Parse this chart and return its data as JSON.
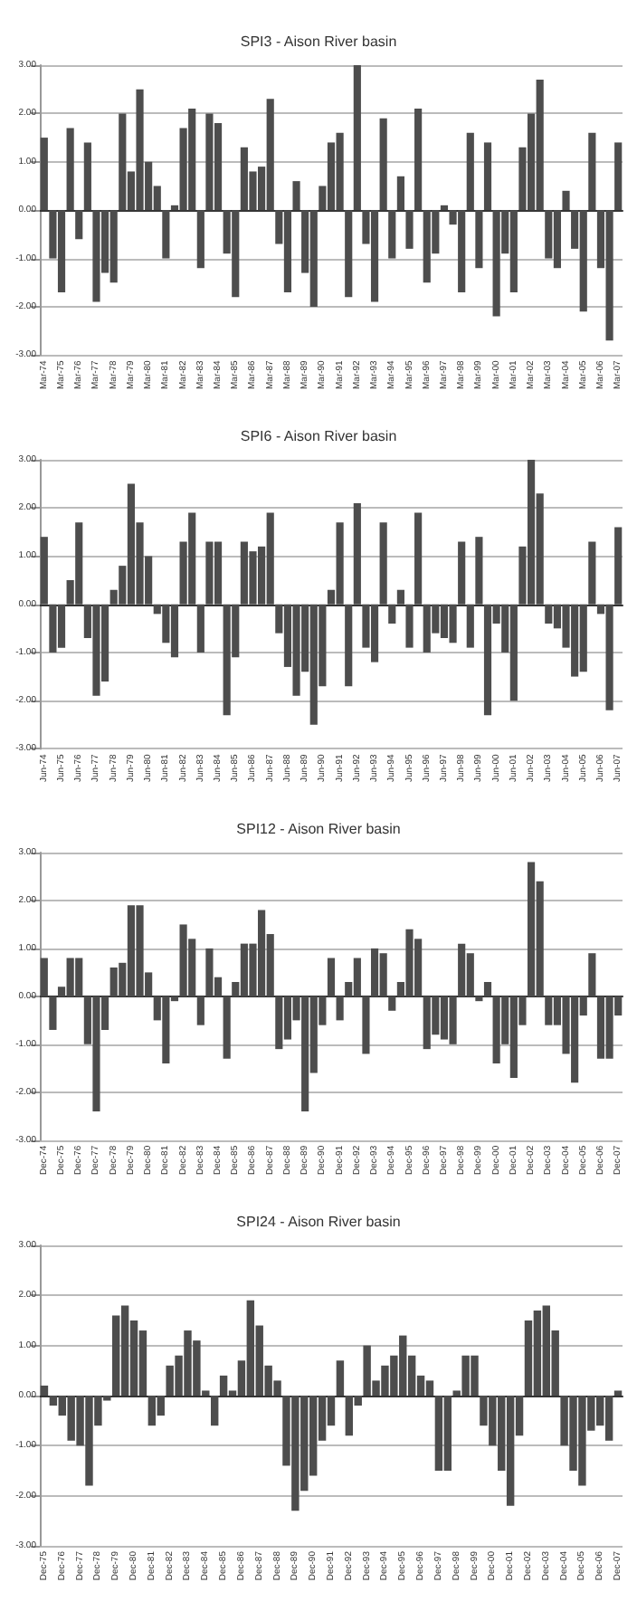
{
  "chart_data": [
    {
      "type": "bar",
      "title": "SPI3 - Aison River basin",
      "categories": [
        "Mar-74",
        null,
        "Mar-75",
        null,
        "Mar-76",
        null,
        "Mar-77",
        null,
        "Mar-78",
        null,
        "Mar-79",
        null,
        "Mar-80",
        null,
        "Mar-81",
        null,
        "Mar-82",
        null,
        "Mar-83",
        null,
        "Mar-84",
        null,
        "Mar-85",
        null,
        "Mar-86",
        null,
        "Mar-87",
        null,
        "Mar-88",
        null,
        "Mar-89",
        null,
        "Mar-90",
        null,
        "Mar-91",
        null,
        "Mar-92",
        null,
        "Mar-93",
        null,
        "Mar-94",
        null,
        "Mar-95",
        null,
        "Mar-96",
        null,
        "Mar-97",
        null,
        "Mar-98",
        null,
        "Mar-99",
        null,
        "Mar-00",
        null,
        "Mar-01",
        null,
        "Mar-02",
        null,
        "Mar-03",
        null,
        "Mar-04",
        null,
        "Mar-05",
        null,
        "Mar-06",
        null,
        "Mar-07"
      ],
      "values": [
        1.5,
        -1.0,
        -1.7,
        1.7,
        -0.6,
        1.4,
        -1.9,
        -1.3,
        -1.5,
        2.0,
        0.8,
        2.5,
        1.0,
        0.5,
        -1.0,
        0.1,
        1.7,
        2.1,
        -1.2,
        2.0,
        1.8,
        -0.9,
        -1.8,
        1.3,
        0.8,
        0.9,
        2.3,
        -0.7,
        -1.7,
        0.6,
        -1.3,
        -2.0,
        0.5,
        1.4,
        1.6,
        -1.8,
        3.0,
        -0.7,
        -1.9,
        1.9,
        -1.0,
        0.7,
        -0.8,
        2.1,
        -1.5,
        -0.9,
        0.1,
        -0.3,
        -1.7,
        1.6,
        -1.2,
        1.4,
        -2.2,
        -0.9,
        -1.7,
        1.3,
        2.0,
        2.7,
        -1.0,
        -1.2,
        0.4,
        -0.8,
        -2.1,
        1.6,
        -1.2,
        -2.7,
        1.4
      ],
      "color": "#4d4d4d",
      "ylim": [
        -3,
        3
      ],
      "yticks": [
        {
          "value": -3,
          "label": "-3.00"
        },
        {
          "value": -2,
          "label": "-2.00"
        },
        {
          "value": -1,
          "label": "-1.00"
        },
        {
          "value": 0,
          "label": "0.00"
        },
        {
          "value": 1,
          "label": "1.00"
        },
        {
          "value": 2,
          "label": "2.00"
        },
        {
          "value": 3,
          "label": "3.00"
        }
      ],
      "grid": "y"
    },
    {
      "type": "bar",
      "title": "SPI6 - Aison River basin",
      "categories": [
        "Jun-74",
        null,
        "Jun-75",
        null,
        "Jun-76",
        null,
        "Jun-77",
        null,
        "Jun-78",
        null,
        "Jun-79",
        null,
        "Jun-80",
        null,
        "Jun-81",
        null,
        "Jun-82",
        null,
        "Jun-83",
        null,
        "Jun-84",
        null,
        "Jun-85",
        null,
        "Jun-86",
        null,
        "Jun-87",
        null,
        "Jun-88",
        null,
        "Jun-89",
        null,
        "Jun-90",
        null,
        "Jun-91",
        null,
        "Jun-92",
        null,
        "Jun-93",
        null,
        "Jun-94",
        null,
        "Jun-95",
        null,
        "Jun-96",
        null,
        "Jun-97",
        null,
        "Jun-98",
        null,
        "Jun-99",
        null,
        "Jun-00",
        null,
        "Jun-01",
        null,
        "Jun-02",
        null,
        "Jun-03",
        null,
        "Jun-04",
        null,
        "Jun-05",
        null,
        "Jun-06",
        null,
        "Jun-07"
      ],
      "values": [
        1.4,
        -1.0,
        -0.9,
        0.5,
        1.7,
        -0.7,
        -1.9,
        -1.6,
        0.3,
        0.8,
        2.5,
        1.7,
        1.0,
        -0.2,
        -0.8,
        -1.1,
        1.3,
        1.9,
        -1.0,
        1.3,
        1.3,
        -2.3,
        -1.1,
        1.3,
        1.1,
        1.2,
        1.9,
        -0.6,
        -1.3,
        -1.9,
        -1.4,
        -2.5,
        -1.7,
        0.3,
        1.7,
        -1.7,
        2.1,
        -0.9,
        -1.2,
        1.7,
        -0.4,
        0.3,
        -0.9,
        1.9,
        -1.0,
        -0.6,
        -0.7,
        -0.8,
        1.3,
        -0.9,
        1.4,
        -2.3,
        -0.4,
        -1.0,
        -2.0,
        1.2,
        3.0,
        2.3,
        -0.4,
        -0.5,
        -0.9,
        -1.5,
        -1.4,
        1.3,
        -0.2,
        -2.2,
        1.6
      ],
      "color": "#4d4d4d",
      "ylim": [
        -3,
        3
      ],
      "yticks": [
        {
          "value": -3,
          "label": "-3.00"
        },
        {
          "value": -2,
          "label": "-2.00"
        },
        {
          "value": -1,
          "label": "-1.00"
        },
        {
          "value": 0,
          "label": "0.00"
        },
        {
          "value": 1,
          "label": "1.00"
        },
        {
          "value": 2,
          "label": "2.00"
        },
        {
          "value": 3,
          "label": "3.00"
        }
      ],
      "grid": "y"
    },
    {
      "type": "bar",
      "title": "SPI12 - Aison River basin",
      "categories": [
        "Dec-74",
        null,
        "Dec-75",
        null,
        "Dec-76",
        null,
        "Dec-77",
        null,
        "Dec-78",
        null,
        "Dec-79",
        null,
        "Dec-80",
        null,
        "Dec-81",
        null,
        "Dec-82",
        null,
        "Dec-83",
        null,
        "Dec-84",
        null,
        "Dec-85",
        null,
        "Dec-86",
        null,
        "Dec-87",
        null,
        "Dec-88",
        null,
        "Dec-89",
        null,
        "Dec-90",
        null,
        "Dec-91",
        null,
        "Dec-92",
        null,
        "Dec-93",
        null,
        "Dec-94",
        null,
        "Dec-95",
        null,
        "Dec-96",
        null,
        "Dec-97",
        null,
        "Dec-98",
        null,
        "Dec-99",
        null,
        "Dec-00",
        null,
        "Dec-01",
        null,
        "Dec-02",
        null,
        "Dec-03",
        null,
        "Dec-04",
        null,
        "Dec-05",
        null,
        "Dec-06",
        null,
        "Dec-07"
      ],
      "values": [
        0.8,
        -0.7,
        0.2,
        0.8,
        0.8,
        -1.0,
        -2.4,
        -0.7,
        0.6,
        0.7,
        1.9,
        1.9,
        0.5,
        -0.5,
        -1.4,
        -0.1,
        1.5,
        1.2,
        -0.6,
        1.0,
        0.4,
        -1.3,
        0.3,
        1.1,
        1.1,
        1.8,
        1.3,
        -1.1,
        -0.9,
        -0.5,
        -2.4,
        -1.6,
        -0.6,
        0.8,
        -0.5,
        0.3,
        0.8,
        -1.2,
        1.0,
        0.9,
        -0.3,
        0.3,
        1.4,
        1.2,
        -1.1,
        -0.8,
        -0.9,
        -1.0,
        1.1,
        0.9,
        -0.1,
        0.3,
        -1.4,
        -1.0,
        -1.7,
        -0.6,
        2.8,
        2.4,
        -0.6,
        -0.6,
        -1.2,
        -1.8,
        -0.4,
        0.9,
        -1.3,
        -1.3,
        -0.4
      ],
      "color": "#4d4d4d",
      "ylim": [
        -3,
        3
      ],
      "yticks": [
        {
          "value": -3,
          "label": "-3.00"
        },
        {
          "value": -2,
          "label": "-2.00"
        },
        {
          "value": -1,
          "label": "-1.00"
        },
        {
          "value": 0,
          "label": "0.00"
        },
        {
          "value": 1,
          "label": "1.00"
        },
        {
          "value": 2,
          "label": "2.00"
        },
        {
          "value": 3,
          "label": "3.00"
        }
      ],
      "grid": "y"
    },
    {
      "type": "bar",
      "title": "SPI24 - Aison River basin",
      "categories": [
        "Dec-75",
        null,
        "Dec-76",
        null,
        "Dec-77",
        null,
        "Dec-78",
        null,
        "Dec-79",
        null,
        "Dec-80",
        null,
        "Dec-81",
        null,
        "Dec-82",
        null,
        "Dec-83",
        null,
        "Dec-84",
        null,
        "Dec-85",
        null,
        "Dec-86",
        null,
        "Dec-87",
        null,
        "Dec-88",
        null,
        "Dec-89",
        null,
        "Dec-90",
        null,
        "Dec-91",
        null,
        "Dec-92",
        null,
        "Dec-93",
        null,
        "Dec-94",
        null,
        "Dec-95",
        null,
        "Dec-96",
        null,
        "Dec-97",
        null,
        "Dec-98",
        null,
        "Dec-99",
        null,
        "Dec-00",
        null,
        "Dec-01",
        null,
        "Dec-02",
        null,
        "Dec-03",
        null,
        "Dec-04",
        null,
        "Dec-05",
        null,
        "Dec-06",
        null,
        "Dec-07"
      ],
      "values": [
        0.2,
        -0.2,
        -0.4,
        -0.9,
        -1.0,
        -1.8,
        -0.6,
        -0.1,
        1.6,
        1.8,
        1.5,
        1.3,
        -0.6,
        -0.4,
        0.6,
        0.8,
        1.3,
        1.1,
        0.1,
        -0.6,
        0.4,
        0.1,
        0.7,
        1.9,
        1.4,
        0.6,
        0.3,
        -1.4,
        -2.3,
        -1.9,
        -1.6,
        -0.9,
        -0.6,
        0.7,
        -0.8,
        -0.2,
        1.0,
        0.3,
        0.6,
        0.8,
        1.2,
        0.8,
        0.4,
        0.3,
        -1.5,
        -1.5,
        0.1,
        0.8,
        0.8,
        -0.6,
        -1.0,
        -1.5,
        -2.2,
        -0.8,
        1.5,
        1.7,
        1.8,
        1.3,
        -1.0,
        -1.5,
        -1.8,
        -0.7,
        -0.6,
        -0.9,
        0.1
      ],
      "color": "#4d4d4d",
      "ylim": [
        -3,
        3
      ],
      "yticks": [
        {
          "value": -3,
          "label": "-3.00"
        },
        {
          "value": -2,
          "label": "-2.00"
        },
        {
          "value": -1,
          "label": "-1.00"
        },
        {
          "value": 0,
          "label": "0.00"
        },
        {
          "value": 1,
          "label": "1.00"
        },
        {
          "value": 2,
          "label": "2.00"
        },
        {
          "value": 3,
          "label": "3.00"
        }
      ],
      "grid": "y"
    }
  ]
}
